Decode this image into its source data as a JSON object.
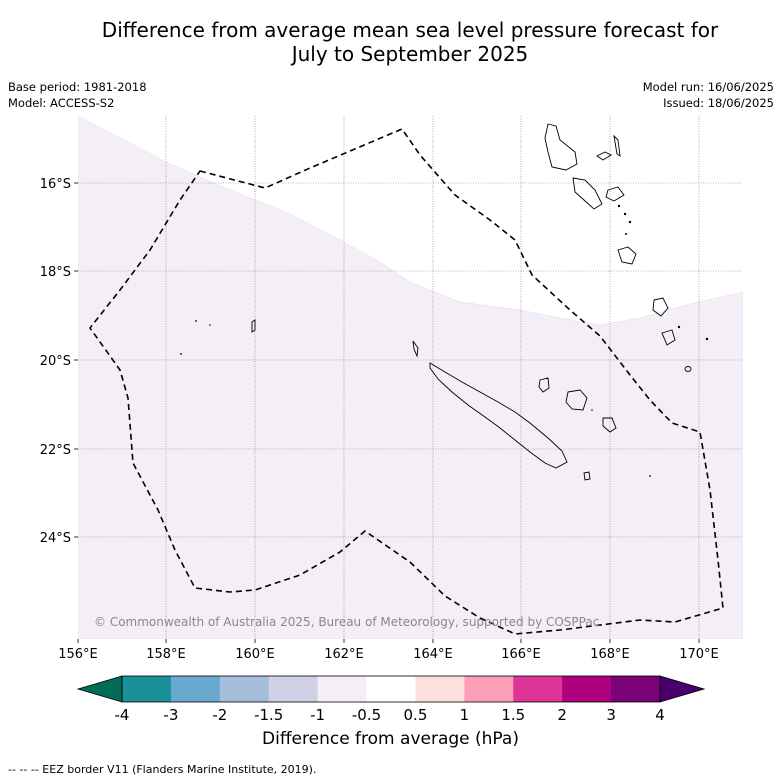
{
  "title_line1": "Difference from average mean sea level pressure forecast for",
  "title_line2": "July to September 2025",
  "meta_left": {
    "base_period": "Base period: 1981-2018",
    "model": "Model: ACCESS-S2"
  },
  "meta_right": {
    "model_run": "Model run: 16/06/2025",
    "issued": "Issued: 18/06/2025"
  },
  "map": {
    "lon_ticks": [
      "156°E",
      "158°E",
      "160°E",
      "162°E",
      "164°E",
      "166°E",
      "168°E",
      "170°E"
    ],
    "lat_ticks": [
      "16°S",
      "18°S",
      "20°S",
      "22°S",
      "24°S"
    ],
    "copyright": "© Commonwealth of Australia 2025, Bureau of Meteorology, supported by COSPPac",
    "shading_color": "#f4eef6",
    "eez_style": "dashed"
  },
  "colorbar": {
    "ticks": [
      "-4",
      "-3",
      "-2",
      "-1.5",
      "-1",
      "-0.5",
      "0.5",
      "1",
      "1.5",
      "2",
      "3",
      "4"
    ],
    "colors": [
      "#1a9099",
      "#67a9cf",
      "#a6bddb",
      "#d0d1e6",
      "#f4eef6",
      "#ffffff",
      "#fde0dd",
      "#fa9fb5",
      "#dd3497",
      "#ae017e",
      "#7a0177"
    ],
    "under_color": "#016c59",
    "over_color": "#49006a",
    "label": "Difference from average (hPa)"
  },
  "footer": "-- -- -- EEZ border V11 (Flanders Marine Institute, 2019)."
}
